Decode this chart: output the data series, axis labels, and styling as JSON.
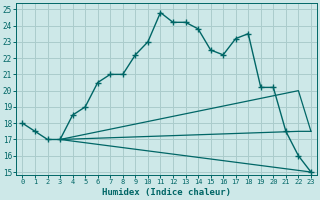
{
  "xlabel": "Humidex (Indice chaleur)",
  "bg_color": "#cde8e8",
  "grid_color": "#aacccc",
  "line_color": "#006666",
  "xlim": [
    -0.5,
    23.5
  ],
  "ylim": [
    14.8,
    25.4
  ],
  "yticks": [
    15,
    16,
    17,
    18,
    19,
    20,
    21,
    22,
    23,
    24,
    25
  ],
  "xticks": [
    0,
    1,
    2,
    3,
    4,
    5,
    6,
    7,
    8,
    9,
    10,
    11,
    12,
    13,
    14,
    15,
    16,
    17,
    18,
    19,
    20,
    21,
    22,
    23
  ],
  "main_x": [
    0,
    1,
    2,
    3,
    4,
    5,
    6,
    7,
    8,
    9,
    10,
    11,
    12,
    13,
    14,
    15,
    16,
    17,
    18,
    19,
    20,
    21,
    22,
    23
  ],
  "main_y": [
    18.0,
    17.5,
    17.0,
    17.0,
    18.5,
    19.0,
    20.5,
    21.0,
    21.0,
    22.2,
    23.0,
    24.8,
    24.2,
    24.2,
    23.8,
    22.5,
    22.2,
    23.2,
    23.5,
    20.2,
    20.2,
    17.5,
    16.0,
    15.0
  ],
  "fan_lines": [
    {
      "x": [
        3,
        22,
        23
      ],
      "y": [
        17.0,
        20.0,
        17.5
      ]
    },
    {
      "x": [
        3,
        22,
        23
      ],
      "y": [
        17.0,
        17.5,
        17.5
      ]
    },
    {
      "x": [
        3,
        23
      ],
      "y": [
        17.0,
        15.0
      ]
    }
  ]
}
